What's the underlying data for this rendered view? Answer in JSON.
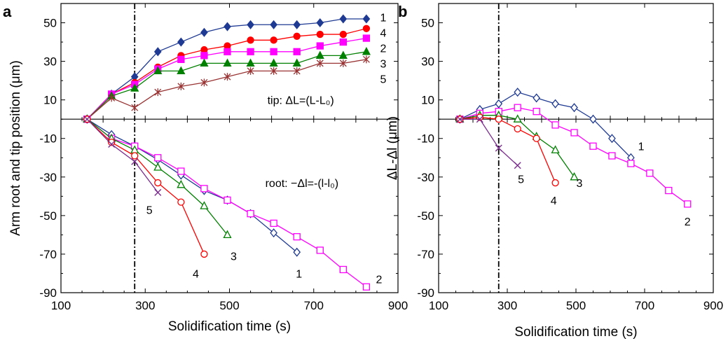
{
  "chart_data": [
    {
      "panel": "a",
      "type": "line",
      "xlabel": "Solidification time (s)",
      "ylabel": "Arm root and tip position (μm)",
      "xlim": [
        100,
        900
      ],
      "ylim": [
        -90,
        60
      ],
      "xticks": [
        100,
        300,
        500,
        700,
        900
      ],
      "yticks": [
        -90,
        -70,
        -50,
        -30,
        -10,
        10,
        30,
        50
      ],
      "vline_x": 275,
      "annotations": [
        {
          "text": "tip: ΔL=(L-L₀)",
          "x": 590,
          "y": 10
        },
        {
          "text": "root: −Δl=-(l-l₀)",
          "x": 585,
          "y": -33
        }
      ],
      "series": [
        {
          "name": "1",
          "group": "tip",
          "color": "#1f3a93",
          "marker": "diamond-filled",
          "x": [
            162,
            220,
            275,
            330,
            385,
            440,
            495,
            550,
            605,
            660,
            715,
            770,
            825
          ],
          "y": [
            0,
            13,
            22,
            35,
            40,
            45,
            48,
            49,
            49,
            49,
            50,
            52,
            52
          ]
        },
        {
          "name": "4",
          "group": "tip",
          "color": "#ff0000",
          "marker": "circle-filled",
          "x": [
            162,
            220,
            275,
            330,
            385,
            440,
            495,
            550,
            605,
            660,
            715,
            770,
            825
          ],
          "y": [
            0,
            13,
            19,
            27,
            33,
            36,
            38,
            41,
            41,
            43,
            44,
            44,
            47
          ]
        },
        {
          "name": "2",
          "group": "tip",
          "color": "#ff00ff",
          "marker": "square-filled",
          "x": [
            162,
            220,
            275,
            330,
            385,
            440,
            495,
            550,
            605,
            660,
            715,
            770,
            825
          ],
          "y": [
            0,
            13,
            18,
            26,
            31,
            33,
            35,
            35,
            35,
            35,
            38,
            40,
            42
          ]
        },
        {
          "name": "3",
          "group": "tip",
          "color": "#008000",
          "marker": "triangle-filled",
          "x": [
            162,
            220,
            275,
            330,
            385,
            440,
            495,
            550,
            605,
            660,
            715,
            770,
            825
          ],
          "y": [
            0,
            12,
            16,
            25,
            25,
            29,
            29,
            29,
            29,
            29,
            33,
            33,
            35
          ]
        },
        {
          "name": "5",
          "group": "tip",
          "color": "#993333",
          "marker": "star",
          "x": [
            162,
            220,
            275,
            330,
            385,
            440,
            495,
            550,
            605,
            660,
            715,
            770,
            825
          ],
          "y": [
            0,
            11,
            6,
            14,
            17,
            19,
            22,
            25,
            25,
            25,
            29,
            29,
            31
          ]
        },
        {
          "name": "1",
          "group": "root",
          "color": "#1f3a93",
          "marker": "diamond-open",
          "x": [
            162,
            220,
            275,
            330,
            385,
            440,
            495,
            550,
            605,
            660
          ],
          "y": [
            0,
            -8,
            -14,
            -21,
            -29,
            -37,
            -42,
            -49,
            -59,
            -69
          ]
        },
        {
          "name": "2",
          "group": "root",
          "color": "#ff00ff",
          "marker": "square-open",
          "x": [
            162,
            220,
            275,
            330,
            385,
            440,
            495,
            550,
            605,
            660,
            715,
            770,
            825
          ],
          "y": [
            0,
            -10,
            -14,
            -20,
            -27,
            -36,
            -42,
            -49,
            -54,
            -61,
            -68,
            -78,
            -87
          ]
        },
        {
          "name": "3",
          "group": "root",
          "color": "#008000",
          "marker": "triangle-open",
          "x": [
            162,
            220,
            275,
            330,
            385,
            440,
            495
          ],
          "y": [
            0,
            -10,
            -16,
            -25,
            -34,
            -45,
            -60
          ]
        },
        {
          "name": "4",
          "group": "root",
          "color": "#ff0000",
          "marker": "circle-open",
          "x": [
            162,
            220,
            275,
            330,
            385,
            440
          ],
          "y": [
            0,
            -12,
            -19,
            -33,
            -43,
            -70
          ]
        },
        {
          "name": "5",
          "group": "root",
          "color": "#7b2d8e",
          "marker": "x",
          "x": [
            162,
            220,
            275,
            330
          ],
          "y": [
            0,
            -13,
            -22,
            -38
          ]
        }
      ],
      "series_labels": [
        {
          "text": "1",
          "x": 865,
          "y": 53
        },
        {
          "text": "4",
          "x": 865,
          "y": 45
        },
        {
          "text": "2",
          "x": 865,
          "y": 37
        },
        {
          "text": "3",
          "x": 865,
          "y": 29
        },
        {
          "text": "5",
          "x": 865,
          "y": 21
        },
        {
          "text": "5",
          "x": 310,
          "y": -47
        },
        {
          "text": "4",
          "x": 420,
          "y": -80
        },
        {
          "text": "3",
          "x": 510,
          "y": -71
        },
        {
          "text": "1",
          "x": 665,
          "y": -80
        },
        {
          "text": "2",
          "x": 855,
          "y": -83
        }
      ]
    },
    {
      "panel": "b",
      "type": "line",
      "xlabel": "Solidification time (s)",
      "ylabel": "ΔL-Δl (μm)",
      "xlim": [
        100,
        900
      ],
      "ylim": [
        -90,
        60
      ],
      "xticks": [
        100,
        300,
        500,
        700,
        900
      ],
      "yticks": [
        -90,
        -70,
        -50,
        -30,
        -10,
        10,
        30,
        50
      ],
      "vline_x": 275,
      "series": [
        {
          "name": "1",
          "color": "#1f3a93",
          "marker": "diamond-open",
          "x": [
            162,
            220,
            275,
            330,
            385,
            440,
            495,
            550,
            605,
            660
          ],
          "y": [
            0,
            5,
            8,
            14,
            11,
            8,
            6,
            0,
            -10,
            -20
          ]
        },
        {
          "name": "2",
          "color": "#ff00ff",
          "marker": "square-open",
          "x": [
            162,
            220,
            275,
            330,
            385,
            440,
            495,
            550,
            605,
            660,
            715,
            770,
            825
          ],
          "y": [
            0,
            3,
            4,
            6,
            4,
            -3,
            -7,
            -14,
            -19,
            -23,
            -28,
            -37,
            -44
          ]
        },
        {
          "name": "3",
          "color": "#008000",
          "marker": "triangle-open",
          "x": [
            162,
            220,
            275,
            330,
            385,
            440,
            495
          ],
          "y": [
            0,
            2,
            2,
            0,
            -9,
            -16,
            -30
          ]
        },
        {
          "name": "4",
          "color": "#ff0000",
          "marker": "circle-open",
          "x": [
            162,
            220,
            275,
            330,
            385,
            440
          ],
          "y": [
            0,
            1,
            0,
            -5,
            -10,
            -33
          ]
        },
        {
          "name": "5",
          "color": "#7b2d8e",
          "marker": "x",
          "x": [
            162,
            220,
            275,
            330
          ],
          "y": [
            0,
            0,
            -15,
            -24
          ]
        }
      ],
      "series_labels": [
        {
          "text": "1",
          "x": 690,
          "y": -14
        },
        {
          "text": "5",
          "x": 340,
          "y": -31
        },
        {
          "text": "4",
          "x": 435,
          "y": -42
        },
        {
          "text": "3",
          "x": 510,
          "y": -33
        },
        {
          "text": "2",
          "x": 825,
          "y": -53
        }
      ]
    }
  ]
}
